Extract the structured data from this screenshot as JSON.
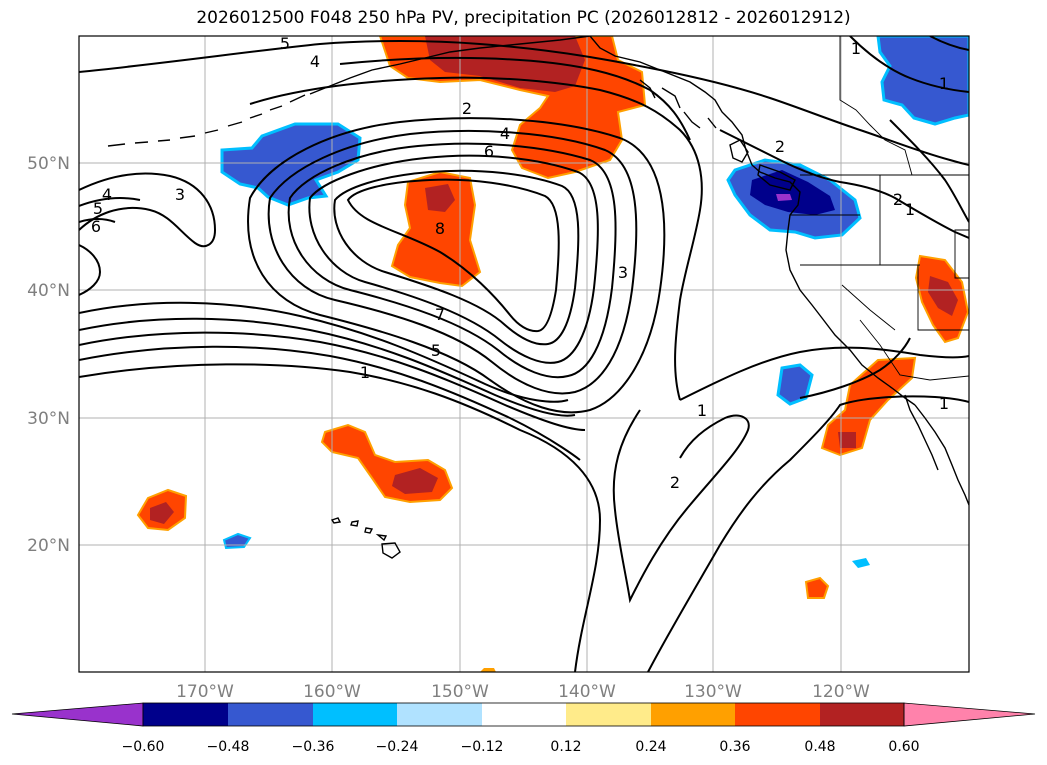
{
  "title": "2026012500 F048 250 hPa PV, precipitation PC (2026012812 - 2026012912)",
  "map": {
    "lat_ticks": [
      "50°N",
      "40°N",
      "30°N",
      "20°N"
    ],
    "lon_ticks": [
      "170°W",
      "160°W",
      "150°W",
      "140°W",
      "130°W",
      "120°W"
    ],
    "contour_labels": [
      "5",
      "4",
      "2",
      "4",
      "6",
      "1",
      "1",
      "2",
      "2",
      "1",
      "3",
      "4",
      "5",
      "6",
      "8",
      "3",
      "7",
      "5",
      "1",
      "1",
      "2",
      "1"
    ]
  },
  "colorbar": {
    "ticks": [
      "−0.60",
      "−0.48",
      "−0.36",
      "−0.24",
      "−0.12",
      "0.12",
      "0.24",
      "0.36",
      "0.48",
      "0.60"
    ],
    "colors": {
      "under": "#9932cc",
      "bins": [
        "#00008b",
        "#3658d0",
        "#00bfff",
        "#b0e2ff",
        "#ffffff",
        "#ffeb8a",
        "#ffa000",
        "#ff4500",
        "#b22222"
      ],
      "over": "#ff82ab"
    }
  },
  "colors": {
    "neg_dark": "#00008b",
    "neg_mid": "#3658d0",
    "neg_light": "#00bfff",
    "pos_light": "#ffa000",
    "pos_mid": "#ff4500",
    "pos_dark": "#b22222",
    "grid": "#b0b0b0"
  }
}
